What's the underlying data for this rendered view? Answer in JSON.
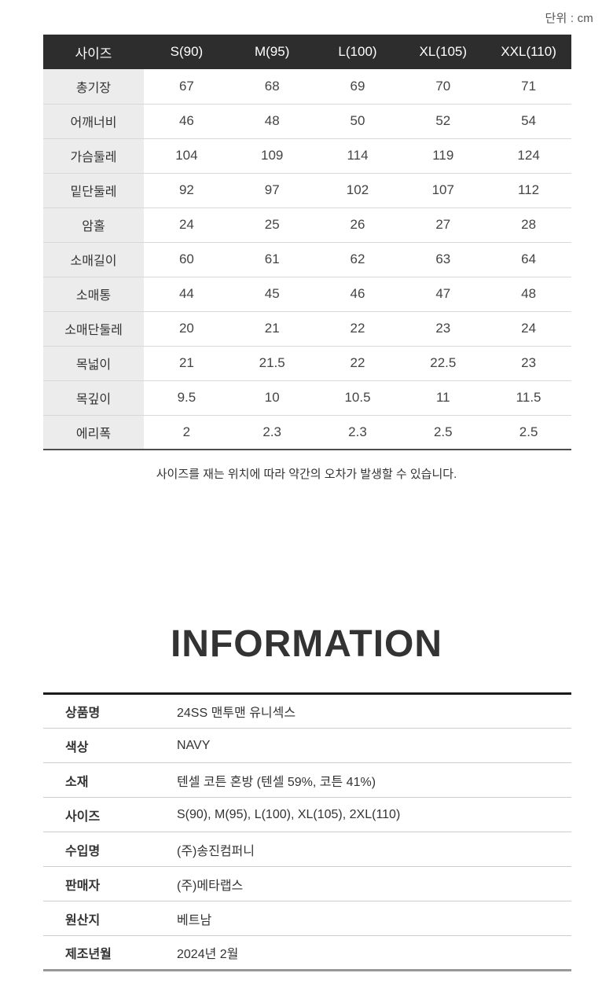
{
  "unit_label": "단위 : cm",
  "size_table": {
    "header": [
      "사이즈",
      "S(90)",
      "M(95)",
      "L(100)",
      "XL(105)",
      "XXL(110)"
    ],
    "rows": [
      {
        "label": "총기장",
        "values": [
          "67",
          "68",
          "69",
          "70",
          "71"
        ]
      },
      {
        "label": "어깨너비",
        "values": [
          "46",
          "48",
          "50",
          "52",
          "54"
        ]
      },
      {
        "label": "가슴둘레",
        "values": [
          "104",
          "109",
          "114",
          "119",
          "124"
        ]
      },
      {
        "label": "밑단둘레",
        "values": [
          "92",
          "97",
          "102",
          "107",
          "112"
        ]
      },
      {
        "label": "암홀",
        "values": [
          "24",
          "25",
          "26",
          "27",
          "28"
        ]
      },
      {
        "label": "소매길이",
        "values": [
          "60",
          "61",
          "62",
          "63",
          "64"
        ]
      },
      {
        "label": "소매통",
        "values": [
          "44",
          "45",
          "46",
          "47",
          "48"
        ]
      },
      {
        "label": "소매단둘레",
        "values": [
          "20",
          "21",
          "22",
          "23",
          "24"
        ]
      },
      {
        "label": "목넓이",
        "values": [
          "21",
          "21.5",
          "22",
          "22.5",
          "23"
        ]
      },
      {
        "label": "목깊이",
        "values": [
          "9.5",
          "10",
          "10.5",
          "11",
          "11.5"
        ]
      },
      {
        "label": "에리폭",
        "values": [
          "2",
          "2.3",
          "2.3",
          "2.5",
          "2.5"
        ]
      }
    ]
  },
  "note": "사이즈를 재는 위치에 따라 약간의 오차가 발생할 수 있습니다.",
  "information": {
    "title": "INFORMATION",
    "rows": [
      {
        "label": "상품명",
        "value": "24SS 맨투맨 유니섹스"
      },
      {
        "label": "색상",
        "value": "NAVY"
      },
      {
        "label": "소재",
        "value": "텐셀 코튼 혼방 (텐셀 59%, 코튼 41%)"
      },
      {
        "label": "사이즈",
        "value": "S(90), M(95), L(100), XL(105), 2XL(110)"
      },
      {
        "label": "수입명",
        "value": "(주)송진컴퍼니"
      },
      {
        "label": "판매자",
        "value": "(주)메타랩스"
      },
      {
        "label": "원산지",
        "value": "베트남"
      },
      {
        "label": "제조년월",
        "value": "2024년 2월"
      }
    ]
  },
  "colors": {
    "size_header_bg": "#2d2d2d",
    "size_header_text": "#ffffff",
    "label_column_bg": "#ececec",
    "row_divider": "#d8d8d8",
    "size_table_bottom_border": "#4d4d4d",
    "info_table_top_border": "#1a1a1a",
    "info_table_bottom_border": "#999999",
    "body_text": "#333333"
  }
}
